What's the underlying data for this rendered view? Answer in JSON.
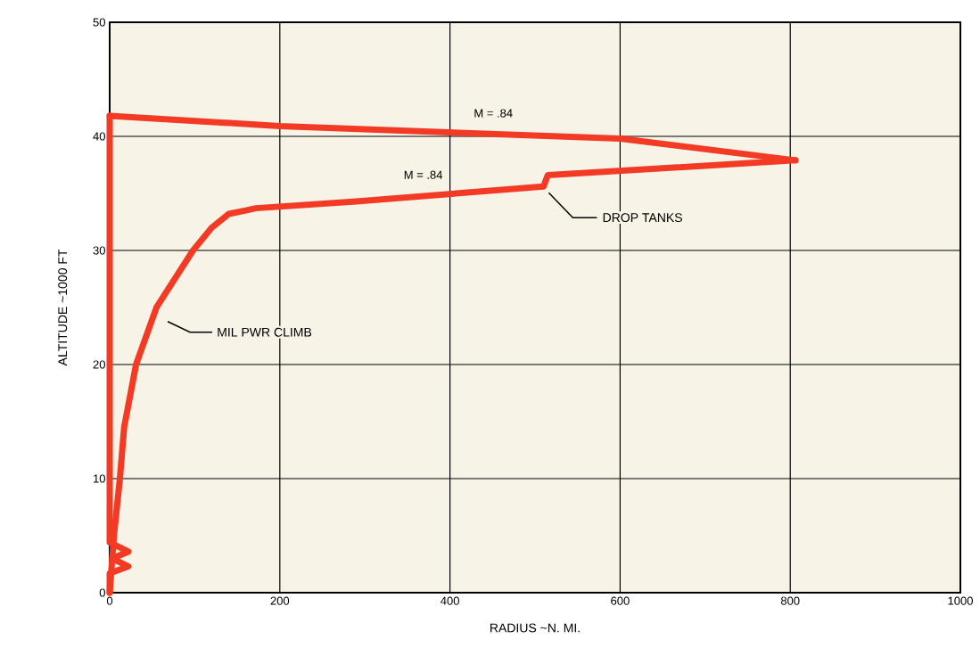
{
  "chart_data": {
    "type": "line",
    "xlabel": "RADIUS ~N. MI.",
    "ylabel": "ALTITUDE ~1000 FT",
    "xlim": [
      0,
      1000
    ],
    "ylim": [
      0,
      50
    ],
    "xticks": [
      0,
      200,
      400,
      600,
      800,
      1000
    ],
    "yticks": [
      0,
      10,
      20,
      30,
      40,
      50
    ],
    "grid": true,
    "line_style": "solid",
    "marker": "none",
    "series": [
      {
        "color": "#f23a24",
        "x": [
          0,
          5,
          12,
          17,
          31,
          55,
          98,
          120,
          140,
          160,
          172,
          290,
          510,
          515,
          806
        ],
        "values": [
          0,
          5,
          10,
          14.5,
          20,
          25,
          30,
          32,
          33.2,
          33.5,
          33.7,
          34.3,
          35.6,
          36.6,
          37.9
        ]
      },
      {
        "color": "#f23a24",
        "x": [
          0,
          200,
          600,
          806
        ],
        "values": [
          41.8,
          40.9,
          39.8,
          37.9
        ]
      },
      {
        "color": "#f23a24",
        "x": [
          0,
          0,
          22,
          3,
          22,
          0,
          0
        ],
        "values": [
          41.8,
          4.4,
          3.6,
          3.0,
          2.3,
          1.7,
          0
        ]
      }
    ],
    "annotations": [
      "M = .84",
      "M = .84",
      "MIL PWR CLIMB",
      "DROP TANKS"
    ]
  }
}
